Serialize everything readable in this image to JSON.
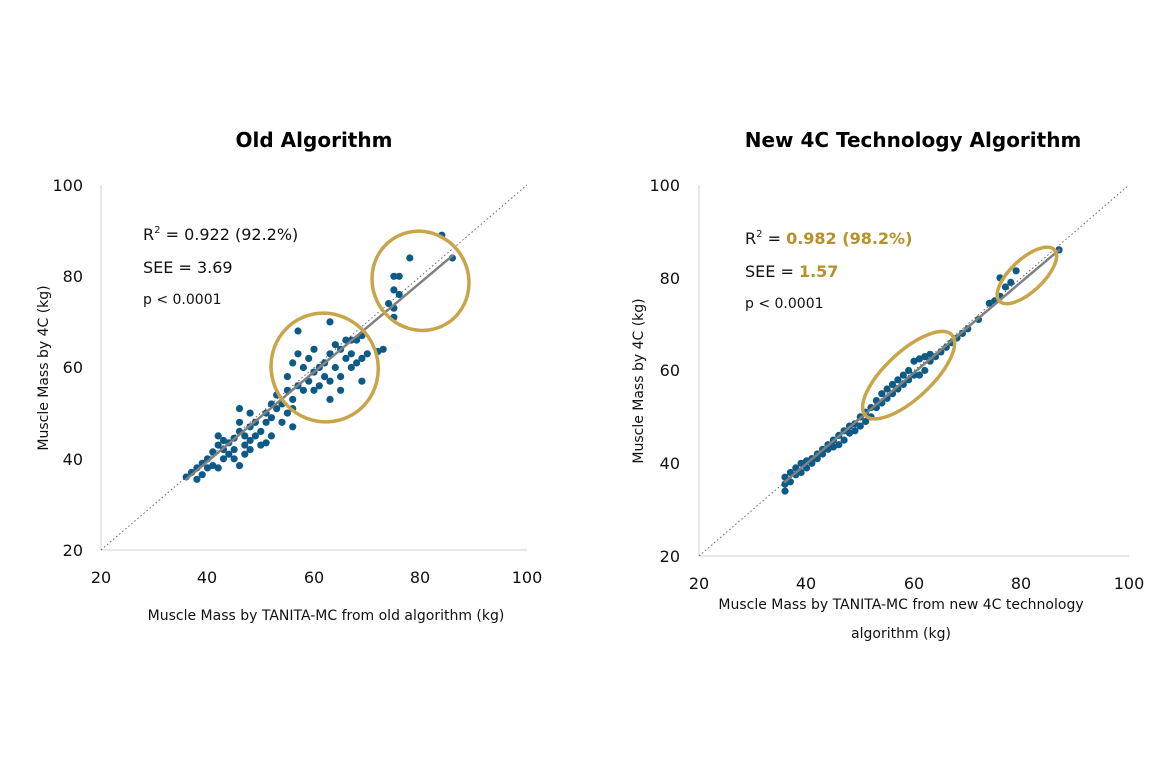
{
  "colors": {
    "point": "#0e5a86",
    "trend": "#808080",
    "ellipse": "#c9a54a",
    "accent": "#b8902a",
    "identity": "#666666"
  },
  "chart_data": [
    {
      "type": "scatter",
      "title": "Old Algorithm",
      "xlabel": "Muscle Mass by TANITA-MC  from old algorithm (kg)",
      "ylabel": "Muscle Mass by 4C (kg)",
      "xlim": [
        20,
        100
      ],
      "ylim": [
        20,
        100
      ],
      "xticks": [
        "20",
        "40",
        "60",
        "80",
        "100"
      ],
      "yticks": [
        "20",
        "40",
        "60",
        "80",
        "100"
      ],
      "trendline": {
        "x": [
          36,
          86
        ],
        "y": [
          35.5,
          84.5
        ]
      },
      "identity_line": true,
      "stats": {
        "r2_label": "R",
        "r2_sup": "2",
        "r2_value": " = 0.922 (92.2%)",
        "see_label": "SEE = ",
        "see_value": "3.69",
        "p_text": "p < 0.0001",
        "highlight": false
      },
      "highlight_ellipses": [
        {
          "cx": 62,
          "cy": 60,
          "rx": 10,
          "ry": 12,
          "angle": -30
        },
        {
          "cx": 80,
          "cy": 79,
          "rx": 9,
          "ry": 11,
          "angle": -30
        }
      ],
      "points": [
        [
          36,
          36
        ],
        [
          37,
          37
        ],
        [
          38,
          35.5
        ],
        [
          38,
          38
        ],
        [
          39,
          39
        ],
        [
          39,
          36.5
        ],
        [
          40,
          38
        ],
        [
          40,
          40
        ],
        [
          41,
          38.5
        ],
        [
          41,
          41.5
        ],
        [
          42,
          38
        ],
        [
          42,
          43
        ],
        [
          42,
          45
        ],
        [
          43,
          40
        ],
        [
          43,
          42
        ],
        [
          43,
          44
        ],
        [
          44,
          41
        ],
        [
          44,
          43.5
        ],
        [
          45,
          40
        ],
        [
          45,
          42
        ],
        [
          45,
          44.5
        ],
        [
          46,
          38.5
        ],
        [
          46,
          46
        ],
        [
          46,
          48
        ],
        [
          46,
          51
        ],
        [
          47,
          41
        ],
        [
          47,
          43
        ],
        [
          47,
          45
        ],
        [
          48,
          42
        ],
        [
          48,
          44
        ],
        [
          48,
          47
        ],
        [
          48,
          50
        ],
        [
          49,
          45
        ],
        [
          49,
          48
        ],
        [
          50,
          43
        ],
        [
          50,
          46
        ],
        [
          51,
          43.5
        ],
        [
          51,
          48
        ],
        [
          51,
          50
        ],
        [
          52,
          45
        ],
        [
          52,
          49
        ],
        [
          52,
          52
        ],
        [
          53,
          51
        ],
        [
          53,
          54
        ],
        [
          54,
          48
        ],
        [
          54,
          52
        ],
        [
          55,
          50
        ],
        [
          55,
          55
        ],
        [
          55,
          58
        ],
        [
          56,
          47
        ],
        [
          56,
          51
        ],
        [
          56,
          53
        ],
        [
          56,
          61
        ],
        [
          57,
          56
        ],
        [
          57,
          63
        ],
        [
          57,
          68
        ],
        [
          58,
          55
        ],
        [
          58,
          60
        ],
        [
          59,
          57
        ],
        [
          59,
          62
        ],
        [
          60,
          55
        ],
        [
          60,
          59
        ],
        [
          60,
          64
        ],
        [
          61,
          56
        ],
        [
          61,
          60
        ],
        [
          62,
          58
        ],
        [
          62,
          61
        ],
        [
          63,
          53
        ],
        [
          63,
          57
        ],
        [
          63,
          63
        ],
        [
          63,
          70
        ],
        [
          64,
          60
        ],
        [
          64,
          65
        ],
        [
          65,
          55
        ],
        [
          65,
          58
        ],
        [
          65,
          64
        ],
        [
          66,
          62
        ],
        [
          66,
          66
        ],
        [
          67,
          60
        ],
        [
          67,
          63
        ],
        [
          67,
          66
        ],
        [
          68,
          61
        ],
        [
          68,
          66
        ],
        [
          69,
          57
        ],
        [
          69,
          62
        ],
        [
          69,
          67
        ],
        [
          70,
          63
        ],
        [
          72,
          63.5
        ],
        [
          73,
          64
        ],
        [
          74,
          74
        ],
        [
          75,
          71
        ],
        [
          75,
          73
        ],
        [
          75,
          77
        ],
        [
          75,
          80
        ],
        [
          76,
          80
        ],
        [
          76,
          76
        ],
        [
          78,
          84
        ],
        [
          84,
          89
        ],
        [
          86,
          84
        ]
      ]
    },
    {
      "type": "scatter",
      "title": "New 4C Technology Algorithm",
      "xlabel_lines": [
        "Muscle Mass by TANITA-MC from new 4C technology",
        "algorithm (kg)"
      ],
      "ylabel": "Muscle Mass by 4C (kg)",
      "xlim": [
        20,
        100
      ],
      "ylim": [
        20,
        100
      ],
      "xticks": [
        "20",
        "40",
        "60",
        "80",
        "100"
      ],
      "yticks": [
        "20",
        "40",
        "60",
        "80",
        "100"
      ],
      "trendline": {
        "x": [
          36,
          87
        ],
        "y": [
          36,
          86
        ]
      },
      "identity_line": true,
      "stats": {
        "r2_label": "R",
        "r2_sup": "2",
        "r2_value": " = ",
        "r2_highlight": "0.982 (98.2%)",
        "see_label": "SEE = ",
        "see_value": "1.57",
        "p_text": "p < 0.0001",
        "highlight": true
      },
      "highlight_ellipses": [
        {
          "cx": 59,
          "cy": 59,
          "rx": 11,
          "ry": 5,
          "angle": -43
        },
        {
          "cx": 81,
          "cy": 80.5,
          "rx": 7,
          "ry": 3.5,
          "angle": -43
        }
      ],
      "points": [
        [
          36,
          34
        ],
        [
          36,
          35.5
        ],
        [
          36,
          37
        ],
        [
          37,
          36
        ],
        [
          37,
          38
        ],
        [
          38,
          37.5
        ],
        [
          38,
          39
        ],
        [
          39,
          38
        ],
        [
          39,
          40
        ],
        [
          40,
          39
        ],
        [
          40,
          40.5
        ],
        [
          41,
          40
        ],
        [
          41,
          41
        ],
        [
          42,
          41
        ],
        [
          42,
          42
        ],
        [
          43,
          42
        ],
        [
          43,
          43
        ],
        [
          44,
          43
        ],
        [
          44,
          44
        ],
        [
          45,
          43.5
        ],
        [
          45,
          45
        ],
        [
          46,
          44
        ],
        [
          46,
          46
        ],
        [
          47,
          45
        ],
        [
          47,
          47
        ],
        [
          48,
          46.5
        ],
        [
          48,
          48
        ],
        [
          49,
          47
        ],
        [
          49,
          48.5
        ],
        [
          50,
          48
        ],
        [
          50,
          50
        ],
        [
          51,
          49
        ],
        [
          51,
          51
        ],
        [
          52,
          50
        ],
        [
          52,
          52
        ],
        [
          53,
          52
        ],
        [
          53,
          53.5
        ],
        [
          54,
          53
        ],
        [
          54,
          55
        ],
        [
          55,
          54
        ],
        [
          55,
          56
        ],
        [
          56,
          55
        ],
        [
          56,
          57
        ],
        [
          57,
          56
        ],
        [
          57,
          58
        ],
        [
          58,
          57
        ],
        [
          58,
          59
        ],
        [
          59,
          58
        ],
        [
          59,
          60
        ],
        [
          60,
          59
        ],
        [
          60,
          62
        ],
        [
          61,
          59
        ],
        [
          61,
          62.5
        ],
        [
          62,
          60
        ],
        [
          62,
          63
        ],
        [
          63,
          62
        ],
        [
          63,
          63.5
        ],
        [
          64,
          63
        ],
        [
          65,
          64
        ],
        [
          66,
          65
        ],
        [
          67,
          66
        ],
        [
          68,
          67
        ],
        [
          69,
          68
        ],
        [
          70,
          69
        ],
        [
          72,
          71
        ],
        [
          74,
          74.5
        ],
        [
          75,
          75
        ],
        [
          76,
          76
        ],
        [
          76,
          80
        ],
        [
          77,
          78
        ],
        [
          78,
          79
        ],
        [
          79,
          81.5
        ],
        [
          87,
          86
        ]
      ]
    }
  ]
}
